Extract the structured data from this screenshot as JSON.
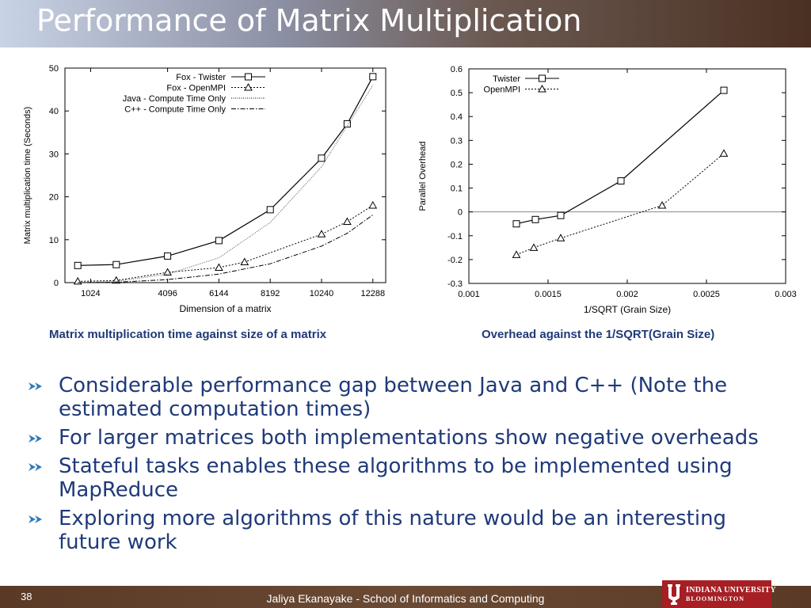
{
  "slide": {
    "title": "Performance of Matrix Multiplication",
    "page_number": "38",
    "footer": "Jaliya Ekanayake - School of Informatics and Computing",
    "logo_line1": "INDIANA UNIVERSITY",
    "logo_line2": "BLOOMINGTON"
  },
  "captions": {
    "left": "Matrix multiplication time against size of a matrix",
    "right": "Overhead against the 1/SQRT(Grain Size)"
  },
  "bullets": [
    "Considerable performance gap between Java and C++ (Note the estimated computation times)",
    "For larger matrices both implementations show negative overheads",
    "Stateful tasks enables these algorithms to be implemented using MapReduce",
    "Exploring more algorithms of this nature would be an interesting future work"
  ],
  "colors": {
    "title_text": "#ffffff",
    "caption_text": "#1f3a78",
    "bullet_text": "#1f3a78",
    "bullet_arrow": "#2e7ab8",
    "logo_bg": "#a51f24"
  },
  "chart_data": [
    {
      "type": "line",
      "xlabel": "Dimension of a matrix",
      "ylabel": "Matrix multiplication time (Seconds)",
      "xlim": [
        0,
        12800
      ],
      "ylim": [
        0,
        50
      ],
      "xticks": [
        1024,
        4096,
        6144,
        8192,
        10240,
        12288
      ],
      "yticks": [
        0,
        10,
        20,
        30,
        40,
        50
      ],
      "grid": false,
      "legend_position": "top-right",
      "series": [
        {
          "name": "Fox - Twister",
          "style": "solid",
          "marker": "square",
          "x": [
            512,
            2048,
            4096,
            6144,
            8192,
            10240,
            11264,
            12288
          ],
          "y": [
            4.0,
            4.2,
            6.2,
            9.8,
            17.0,
            29.0,
            37.0,
            48.0
          ]
        },
        {
          "name": "Fox - OpenMPI",
          "style": "dotted",
          "marker": "triangle",
          "x": [
            512,
            2048,
            4096,
            6144,
            7168,
            10240,
            11264,
            12288
          ],
          "y": [
            0.3,
            0.5,
            2.4,
            3.5,
            4.8,
            11.3,
            14.2,
            18.0
          ]
        },
        {
          "name": "Java - Compute Time Only",
          "style": "thin-dotted",
          "marker": "none",
          "x": [
            512,
            2048,
            4096,
            6144,
            8192,
            10240,
            12288
          ],
          "y": [
            0.0,
            0.3,
            2.0,
            5.8,
            14.0,
            27.0,
            46.0
          ]
        },
        {
          "name": "C++ - Compute Time Only",
          "style": "dashdot",
          "marker": "none",
          "x": [
            512,
            2048,
            4096,
            6144,
            8192,
            10240,
            11264,
            12288
          ],
          "y": [
            0.0,
            0.1,
            0.7,
            2.0,
            4.4,
            8.5,
            11.5,
            15.8
          ]
        }
      ]
    },
    {
      "type": "line",
      "xlabel": "1/SQRT (Grain Size)",
      "ylabel": "Parallel Overhead",
      "xlim": [
        0.001,
        0.003
      ],
      "ylim": [
        -0.3,
        0.6
      ],
      "xticks": [
        0.001,
        0.0015,
        0.002,
        0.0025,
        0.003
      ],
      "xtick_labels": [
        "0.001",
        "0.0015",
        "0.002",
        "0.0025",
        "0.003"
      ],
      "yticks": [
        -0.3,
        -0.2,
        -0.1,
        0,
        0.1,
        0.2,
        0.3,
        0.4,
        0.5,
        0.6
      ],
      "ytick_labels": [
        "-0.3",
        "-0.2",
        "-0.1",
        "0",
        "0.1",
        "0.2",
        "0.3",
        "0.4",
        "0.5",
        "0.6"
      ],
      "grid": false,
      "zero_line": true,
      "legend_position": "top-left",
      "series": [
        {
          "name": "Twister",
          "style": "solid",
          "marker": "square",
          "x": [
            0.0013,
            0.00142,
            0.00158,
            0.00196,
            0.00261
          ],
          "y": [
            -0.05,
            -0.032,
            -0.015,
            0.13,
            0.51
          ]
        },
        {
          "name": "OpenMPI",
          "style": "dotted",
          "marker": "triangle",
          "x": [
            0.0013,
            0.00141,
            0.00158,
            0.00222,
            0.00261
          ],
          "y": [
            -0.18,
            -0.15,
            -0.11,
            0.027,
            0.245
          ]
        }
      ]
    }
  ]
}
